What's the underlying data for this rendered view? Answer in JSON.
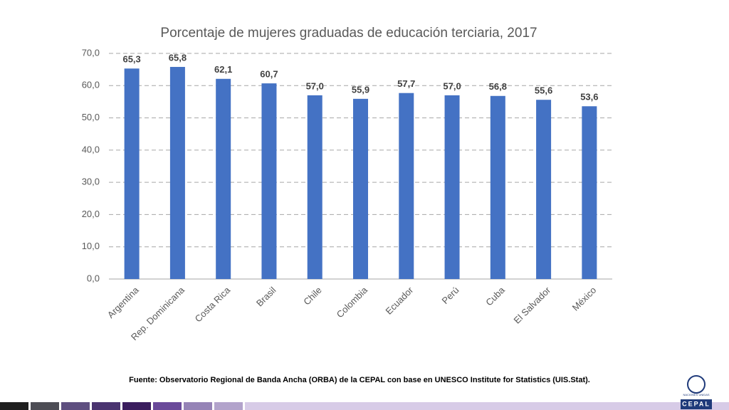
{
  "chart_data": {
    "type": "bar",
    "title": "Porcentaje de mujeres graduadas de educación terciaria, 2017",
    "categories": [
      "Argentina",
      "Rep. Dominicana",
      "Costa Rica",
      "Brasil",
      "Chile",
      "Colombia",
      "Ecuador",
      "Perú",
      "Cuba",
      "El Salvador",
      "México"
    ],
    "values": [
      65.3,
      65.8,
      62.1,
      60.7,
      57.0,
      55.9,
      57.7,
      57.0,
      56.8,
      55.6,
      53.6
    ],
    "value_labels": [
      "65,3",
      "65,8",
      "62,1",
      "60,7",
      "57,0",
      "55,9",
      "57,7",
      "57,0",
      "56,8",
      "55,6",
      "53,6"
    ],
    "color": "#4472c4",
    "ylim": [
      0,
      70
    ],
    "yticks": [
      {
        "value": 0,
        "label": "0,0"
      },
      {
        "value": 10,
        "label": "10,0"
      },
      {
        "value": 20,
        "label": "20,0"
      },
      {
        "value": 30,
        "label": "30,0"
      },
      {
        "value": 40,
        "label": "40,0"
      },
      {
        "value": 50,
        "label": "50,0"
      },
      {
        "value": 60,
        "label": "60,0"
      },
      {
        "value": 70,
        "label": "70,0"
      }
    ],
    "grid": true
  },
  "footer": {
    "source": "Fuente: Observatorio Regional de Banda Ancha (ORBA) de la CEPAL con base en UNESCO Institute for Statistics (UIS.Stat).",
    "logo_caption": "NACIONES UNIDAS",
    "logo_name": "CEPAL"
  }
}
